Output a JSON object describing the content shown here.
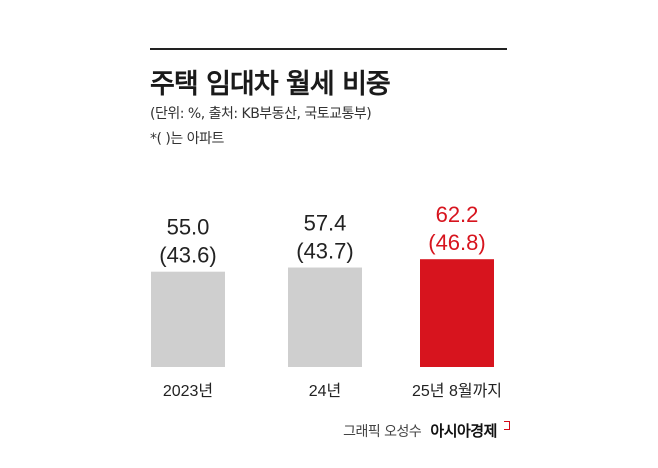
{
  "header": {
    "title": "주택 임대차 월세 비중",
    "meta_line1": "(단위: %, 출처: KB부동산, 국토교통부)",
    "meta_line2": "*( )는 아파트"
  },
  "footer": {
    "graphic_credit": "그래픽 오성수",
    "brand": "아시아경제"
  },
  "colors": {
    "bar_default": "#cfcfcf",
    "bar_highlight": "#d7141e",
    "label_default": "#222222",
    "label_highlight": "#d7141e"
  },
  "chart_data": {
    "type": "bar",
    "title": "주택 임대차 월세 비중",
    "subtitle": "(단위: %, 출처: KB부동산, 국토교통부)",
    "annotation": "*( )는 아파트",
    "categories": [
      "2023년",
      "24년",
      "25년 8월까지"
    ],
    "series": [
      {
        "values": [
          55.0,
          57.4,
          62.2
        ]
      },
      {
        "values": [
          43.6,
          43.7,
          46.8
        ]
      }
    ],
    "value_labels": [
      "55.0",
      "57.4",
      "62.2"
    ],
    "apartment_labels": [
      "(43.6)",
      "(43.7)",
      "(46.8)"
    ],
    "highlight_index": 2,
    "xlabel": "",
    "ylabel": "",
    "grid": false,
    "legend": "none"
  }
}
